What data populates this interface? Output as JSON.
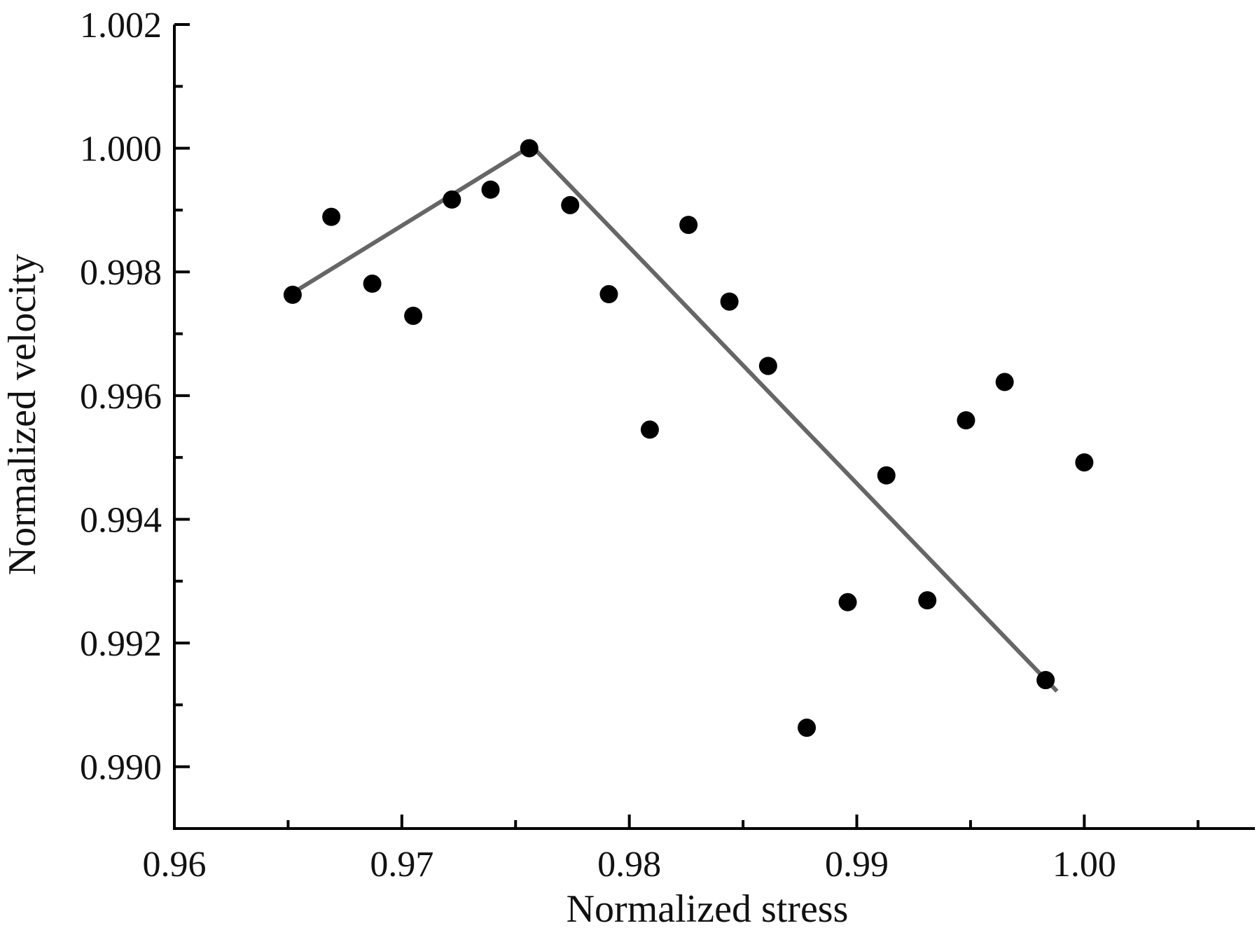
{
  "chart_data": {
    "type": "scatter",
    "title": "",
    "xlabel": "Normalized stress",
    "ylabel": "Normalized velocity",
    "xlim": [
      0.96,
      1.0075
    ],
    "ylim": [
      0.989,
      1.002
    ],
    "x_ticks": [
      0.96,
      0.97,
      0.98,
      0.99,
      1.0
    ],
    "x_tick_labels": [
      "0.96",
      "0.97",
      "0.98",
      "0.99",
      "1.00"
    ],
    "y_ticks": [
      0.99,
      0.992,
      0.994,
      0.996,
      0.998,
      1.0,
      1.002
    ],
    "y_tick_labels": [
      "0.990",
      "0.992",
      "0.994",
      "0.996",
      "0.998",
      "1.000",
      "1.002"
    ],
    "x_minor_step": 0.005,
    "y_minor_step": 0.001,
    "grid": false,
    "legend": "none",
    "colors": {
      "points": "#000000",
      "fit_line": "#666666",
      "axes": "#000000"
    },
    "series": [
      {
        "kind": "points",
        "points": [
          {
            "x": 0.9652,
            "y": 0.99763
          },
          {
            "x": 0.9669,
            "y": 0.99889
          },
          {
            "x": 0.9687,
            "y": 0.99781
          },
          {
            "x": 0.9705,
            "y": 0.99729
          },
          {
            "x": 0.9722,
            "y": 0.99917
          },
          {
            "x": 0.9739,
            "y": 0.99933
          },
          {
            "x": 0.9756,
            "y": 1.0
          },
          {
            "x": 0.9774,
            "y": 0.99908
          },
          {
            "x": 0.9791,
            "y": 0.99764
          },
          {
            "x": 0.9809,
            "y": 0.99545
          },
          {
            "x": 0.9826,
            "y": 0.99876
          },
          {
            "x": 0.9844,
            "y": 0.99752
          },
          {
            "x": 0.9861,
            "y": 0.99648
          },
          {
            "x": 0.9878,
            "y": 0.99063
          },
          {
            "x": 0.9896,
            "y": 0.99266
          },
          {
            "x": 0.9913,
            "y": 0.99471
          },
          {
            "x": 0.9931,
            "y": 0.99269
          },
          {
            "x": 0.9948,
            "y": 0.9956
          },
          {
            "x": 0.9965,
            "y": 0.99622
          },
          {
            "x": 0.9983,
            "y": 0.9914
          },
          {
            "x": 1.0,
            "y": 0.99492
          }
        ]
      },
      {
        "kind": "fit-line",
        "points": [
          {
            "x": 0.9652,
            "y": 0.99766
          },
          {
            "x": 0.9757,
            "y": 1.00004
          },
          {
            "x": 0.9988,
            "y": 0.99122
          }
        ]
      }
    ]
  }
}
